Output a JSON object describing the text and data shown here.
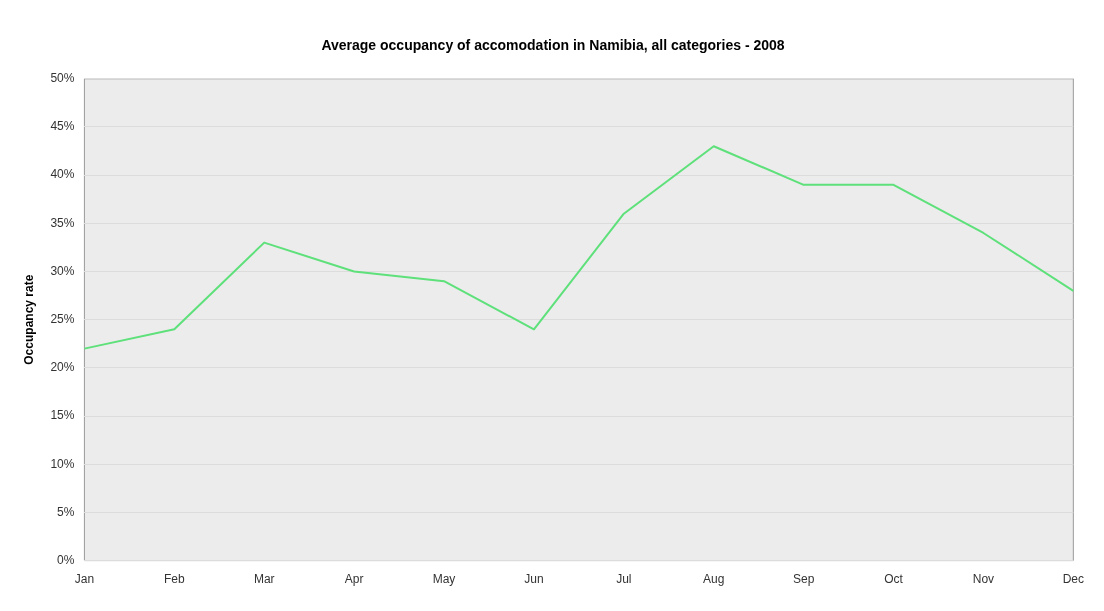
{
  "chart_data": {
    "type": "line",
    "title": "Average occupancy of accomodation in Namibia, all categories - 2008",
    "ylabel": "Occupancy rate",
    "categories": [
      "Jan",
      "Feb",
      "Mar",
      "Apr",
      "May",
      "Jun",
      "Jul",
      "Aug",
      "Sep",
      "Oct",
      "Nov",
      "Dec"
    ],
    "series": [
      {
        "color": "#5ee07a",
        "values": [
          22,
          24,
          33,
          30,
          29,
          24,
          36,
          43,
          39,
          39,
          34,
          28
        ]
      }
    ],
    "ylim": [
      0,
      50
    ],
    "yticks": [
      {
        "value": 0,
        "label": "0%"
      },
      {
        "value": 5,
        "label": "5%"
      },
      {
        "value": 10,
        "label": "10%"
      },
      {
        "value": 15,
        "label": "15%"
      },
      {
        "value": 20,
        "label": "20%"
      },
      {
        "value": 25,
        "label": "25%"
      },
      {
        "value": 30,
        "label": "30%"
      },
      {
        "value": 35,
        "label": "35%"
      },
      {
        "value": 40,
        "label": "40%"
      },
      {
        "value": 45,
        "label": "45%"
      },
      {
        "value": 50,
        "label": "50%"
      }
    ],
    "grid": "y",
    "legend": false,
    "marker": "none",
    "line_style": "solid"
  }
}
